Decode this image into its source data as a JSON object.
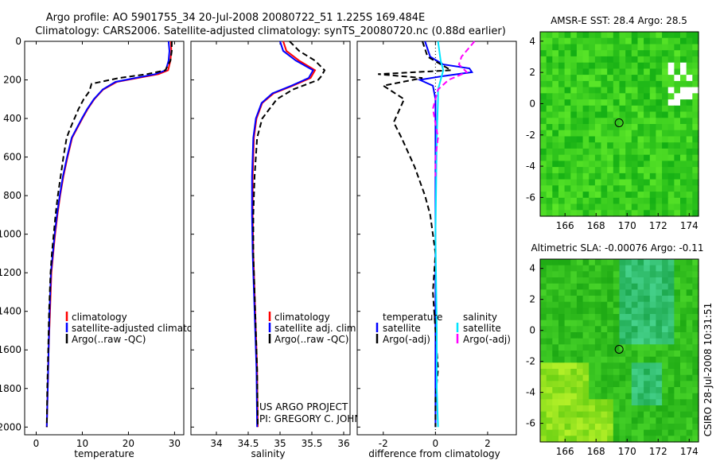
{
  "header": {
    "title_line1": "Argo profile: AO 5901755_34 20-Jul-2008 20080722_51 1.225S 169.484E",
    "title_line2": "Climatology: CARS2006. Satellite-adjusted climatology: synTS_20080720.nc (0.88d earlier)"
  },
  "colors": {
    "climatology": "#ff0000",
    "satellite": "#0000ff",
    "argo": "#000000",
    "sal_satellite": "#00e5ff",
    "sal_argo": "#ff00ff"
  },
  "annotations": {
    "project": "US ARGO PROJECT",
    "pi": "PI: GREGORY C. JOHNSON",
    "credit": "CSIRO 28-Jul-2008 10:31:51"
  },
  "chart_data": [
    {
      "type": "line",
      "id": "temperature",
      "xlabel": "temperature",
      "ylabel": "",
      "xlim": [
        -2.5,
        32
      ],
      "ylim": [
        0,
        2040
      ],
      "xticks": [
        0,
        10,
        20,
        30
      ],
      "yticks": [
        0,
        200,
        400,
        600,
        800,
        1000,
        1200,
        1400,
        1600,
        1800,
        2000
      ],
      "legend": [
        "climatology",
        "satellite-adjusted climatology",
        "Argo(..raw -QC)"
      ],
      "series": [
        {
          "name": "climatology",
          "color": "#ff0000",
          "x": [
            29.2,
            29.3,
            29.1,
            28.6,
            26.5,
            22.0,
            17.5,
            14.5,
            12.6,
            11.2,
            10.0,
            8.9,
            7.8,
            6.8,
            5.9,
            5.2,
            4.6,
            4.1,
            3.7,
            3.3,
            3.0,
            2.7,
            2.5,
            2.3
          ],
          "y": [
            0,
            50,
            100,
            150,
            170,
            190,
            210,
            250,
            300,
            350,
            400,
            450,
            500,
            600,
            700,
            800,
            900,
            1000,
            1100,
            1200,
            1400,
            1600,
            1800,
            2000
          ]
        },
        {
          "name": "satellite-adjusted climatology",
          "color": "#0000ff",
          "x": [
            28.7,
            28.9,
            28.7,
            28.1,
            25.8,
            21.5,
            17.2,
            14.4,
            12.5,
            11.1,
            9.9,
            8.8,
            7.7,
            6.7,
            5.8,
            5.1,
            4.5,
            4.0,
            3.6,
            3.2,
            2.9,
            2.7,
            2.5,
            2.3
          ],
          "y": [
            0,
            50,
            100,
            150,
            170,
            190,
            210,
            250,
            300,
            350,
            400,
            450,
            500,
            600,
            700,
            800,
            900,
            1000,
            1100,
            1200,
            1400,
            1600,
            1800,
            2000
          ]
        },
        {
          "name": "Argo(..raw -QC)",
          "color": "#000000",
          "dashed": true,
          "x": [
            29.4,
            29.4,
            29.1,
            28.0,
            24.0,
            18.0,
            12.0,
            11.5,
            10.3,
            9.2,
            8.3,
            7.4,
            6.6,
            5.9,
            5.3,
            4.7,
            4.2,
            3.8,
            3.4,
            3.1,
            2.8,
            2.6,
            2.4,
            2.3
          ],
          "y": [
            0,
            50,
            100,
            150,
            170,
            190,
            220,
            260,
            300,
            350,
            400,
            450,
            500,
            600,
            700,
            800,
            900,
            1000,
            1100,
            1200,
            1400,
            1600,
            1800,
            2000
          ]
        }
      ]
    },
    {
      "type": "line",
      "id": "salinity",
      "xlabel": "salinity",
      "xlim": [
        33.6,
        36.1
      ],
      "ylim": [
        0,
        2040
      ],
      "xticks": [
        34,
        34.5,
        35,
        35.5,
        36
      ],
      "legend": [
        "climatology",
        "satellite adj. clim.",
        "Argo(..raw -QC)"
      ],
      "series": [
        {
          "name": "climatology",
          "color": "#ff0000",
          "x": [
            35.05,
            35.1,
            35.3,
            35.55,
            35.48,
            35.2,
            34.9,
            34.72,
            34.63,
            34.59,
            34.57,
            34.57,
            34.58,
            34.6,
            34.62,
            34.64,
            34.65
          ],
          "y": [
            0,
            50,
            100,
            150,
            190,
            230,
            270,
            320,
            400,
            500,
            700,
            900,
            1100,
            1300,
            1500,
            1700,
            2000
          ]
        },
        {
          "name": "satellite adj. clim.",
          "color": "#0000ff",
          "x": [
            35.0,
            35.05,
            35.25,
            35.52,
            35.45,
            35.18,
            34.88,
            34.71,
            34.62,
            34.58,
            34.56,
            34.56,
            34.57,
            34.59,
            34.61,
            34.63,
            34.64
          ],
          "y": [
            0,
            50,
            100,
            150,
            190,
            230,
            270,
            320,
            400,
            500,
            700,
            900,
            1100,
            1300,
            1500,
            1700,
            2000
          ]
        },
        {
          "name": "Argo(..raw -QC)",
          "color": "#000000",
          "dashed": true,
          "x": [
            35.15,
            35.3,
            35.55,
            35.7,
            35.65,
            35.6,
            35.2,
            34.95,
            34.72,
            34.64,
            34.6,
            34.58,
            34.58,
            34.6,
            34.62,
            34.64,
            34.65
          ],
          "y": [
            0,
            50,
            100,
            150,
            180,
            200,
            250,
            300,
            400,
            500,
            700,
            900,
            1100,
            1300,
            1500,
            1700,
            2000
          ]
        }
      ]
    },
    {
      "type": "line",
      "id": "difference",
      "xlabel": "difference from climatology",
      "xlim": [
        -3,
        3.1
      ],
      "ylim": [
        0,
        2040
      ],
      "xticks": [
        -2,
        0,
        2
      ],
      "legend": [
        "temperature",
        "satellite",
        "Argo(-adj)",
        "salinity",
        "satellite",
        "Argo(-adj)"
      ],
      "series": [
        {
          "name": "temperature satellite",
          "color": "#0000ff",
          "x": [
            -0.4,
            -0.2,
            0.3,
            1.3,
            1.4,
            0.3,
            -0.6,
            -0.1,
            0,
            0,
            0,
            0,
            0
          ],
          "y": [
            0,
            80,
            120,
            140,
            160,
            180,
            200,
            230,
            300,
            500,
            1000,
            1500,
            2000
          ]
        },
        {
          "name": "temperature Argo(-adj)",
          "color": "#000000",
          "dashed": true,
          "x": [
            -0.5,
            -0.3,
            0.6,
            -2.2,
            -0.5,
            -2.0,
            -1.2,
            -1.6,
            -1.3,
            -1.1,
            -0.8,
            -0.4,
            -0.2,
            -0.1,
            0,
            -0.1,
            0,
            0.1,
            0,
            0
          ],
          "y": [
            0,
            80,
            150,
            170,
            190,
            230,
            300,
            420,
            500,
            560,
            650,
            800,
            900,
            1000,
            1100,
            1300,
            1500,
            1700,
            1850,
            2000
          ]
        },
        {
          "name": "salinity satellite",
          "color": "#00e5ff",
          "x": [
            0.1,
            0.2,
            0.3,
            0.2,
            0.1,
            0.1,
            0.05,
            0,
            0.05,
            0.05,
            0.1
          ],
          "y": [
            0,
            100,
            150,
            200,
            250,
            300,
            500,
            1000,
            1500,
            1800,
            2000
          ]
        },
        {
          "name": "salinity Argo(-adj)",
          "color": "#ff00ff",
          "dashed": true,
          "x": [
            1.5,
            1.0,
            0.9,
            1.2,
            0.5,
            0.1,
            -0.1,
            0.1,
            0,
            0
          ],
          "y": [
            0,
            80,
            120,
            160,
            200,
            250,
            350,
            500,
            600,
            700
          ]
        }
      ]
    },
    {
      "type": "heatmap",
      "id": "amsr-sst",
      "title": "AMSR-E SST: 28.4 Argo: 28.5",
      "xlim": [
        164.4,
        174.6
      ],
      "ylim": [
        -7.2,
        4.6
      ],
      "xticks": [
        166,
        168,
        170,
        172,
        174
      ],
      "yticks": [
        4,
        2,
        0,
        -2,
        -4,
        -6
      ],
      "marker": {
        "lon": 169.484,
        "lat": -1.225
      }
    },
    {
      "type": "heatmap",
      "id": "altimetric-sla",
      "title": "Altimetric SLA: -0.00076 Argo: -0.11",
      "xlim": [
        164.4,
        174.6
      ],
      "ylim": [
        -7.2,
        4.6
      ],
      "xticks": [
        166,
        168,
        170,
        172,
        174
      ],
      "yticks": [
        4,
        2,
        0,
        -2,
        -4,
        -6
      ],
      "marker": {
        "lon": 169.484,
        "lat": -1.225
      }
    }
  ]
}
